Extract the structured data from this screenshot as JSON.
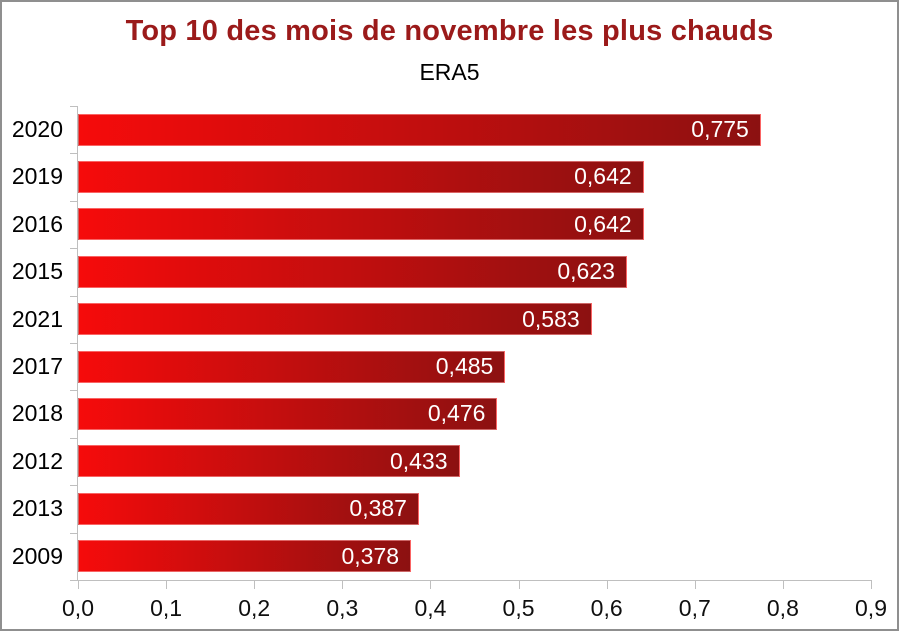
{
  "window": {
    "background": "#ffffff",
    "frame_border_color": "#8f8f8f"
  },
  "chart_data": {
    "type": "bar",
    "orientation": "horizontal",
    "title": "Top 10 des mois de novembre les plus chauds",
    "subtitle": "ERA5",
    "categories": [
      "2020",
      "2019",
      "2016",
      "2015",
      "2021",
      "2017",
      "2018",
      "2012",
      "2013",
      "2009"
    ],
    "values": [
      0.775,
      0.642,
      0.642,
      0.623,
      0.583,
      0.485,
      0.476,
      0.433,
      0.387,
      0.378
    ],
    "value_labels": [
      "0,775",
      "0,642",
      "0,642",
      "0,623",
      "0,583",
      "0,485",
      "0,476",
      "0,433",
      "0,387",
      "0,378"
    ],
    "xlim": [
      0,
      0.9
    ],
    "x_ticks": [
      0,
      0.1,
      0.2,
      0.3,
      0.4,
      0.5,
      0.6,
      0.7,
      0.8,
      0.9
    ],
    "x_tick_labels": [
      "0,0",
      "0,1",
      "0,2",
      "0,3",
      "0,4",
      "0,5",
      "0,6",
      "0,7",
      "0,8",
      "0,9"
    ],
    "grid": false,
    "legend": null,
    "colors": {
      "title": "#9b1a1a",
      "subtitle": "#000000",
      "bar_gradient_start": "#f60b0b",
      "bar_gradient_end": "#8c1111",
      "value_label": "#ffffff",
      "category_label": "#000000",
      "axis": "#bfbfbf",
      "tick_label": "#0f0f0f"
    }
  }
}
